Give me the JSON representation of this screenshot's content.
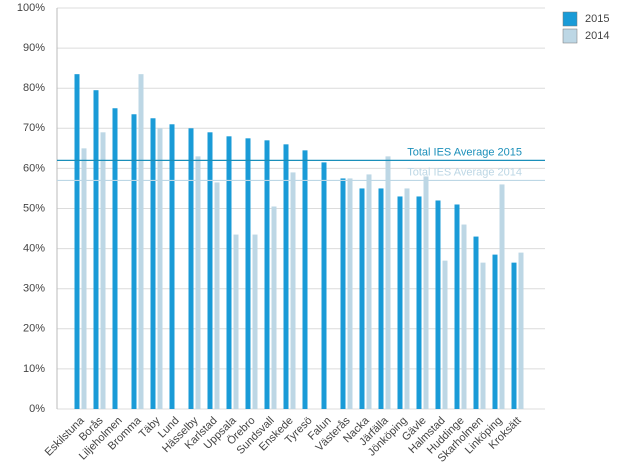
{
  "chart_data": {
    "type": "bar",
    "categories": [
      "Eskilstuna",
      "Borås",
      "Liljeholmen",
      "Bromma",
      "Täby",
      "Lund",
      "Hässelby",
      "Karlstad",
      "Uppsala",
      "Örebro",
      "Sundsvall",
      "Enskede",
      "Tyresö",
      "Falun",
      "Västerås",
      "Nacka",
      "Järfälla",
      "Jönköping",
      "Gävle",
      "Halmstad",
      "Huddinge",
      "Skarholmen",
      "Linköping",
      "Kroksätt"
    ],
    "series": [
      {
        "name": "2015",
        "color": "#1a9bd7",
        "values": [
          83.5,
          79.5,
          75,
          73.5,
          72.5,
          71,
          70,
          69,
          68,
          67.5,
          67,
          66,
          64.5,
          61.5,
          57.5,
          55,
          55,
          53,
          53,
          52,
          51,
          43,
          38.5,
          36.5
        ]
      },
      {
        "name": "2014",
        "color": "#bdd7e5",
        "values": [
          65,
          69,
          null,
          83.5,
          70,
          null,
          63,
          56.5,
          43.5,
          43.5,
          50.5,
          59,
          null,
          null,
          57.5,
          58.5,
          63,
          55,
          58,
          37,
          46,
          36.5,
          56,
          39
        ]
      }
    ],
    "averages": [
      {
        "label": "Total IES Average 2015",
        "value": 62,
        "color": "#1a8fba"
      },
      {
        "label": "Total IES Average 2014",
        "value": 57,
        "color": "#bdd7e5"
      }
    ],
    "ylim": [
      0,
      100
    ],
    "yticks": [
      {
        "value": 0,
        "label": "0%"
      },
      {
        "value": 10,
        "label": "10%"
      },
      {
        "value": 20,
        "label": "20%"
      },
      {
        "value": 30,
        "label": "30%"
      },
      {
        "value": 40,
        "label": "40%"
      },
      {
        "value": 50,
        "label": "50%"
      },
      {
        "value": 60,
        "label": "60%"
      },
      {
        "value": 70,
        "label": "70%"
      },
      {
        "value": 80,
        "label": "80%"
      },
      {
        "value": 90,
        "label": "90%"
      },
      {
        "value": 100,
        "label": "100%"
      }
    ],
    "grid": true,
    "legend": "top-right"
  }
}
